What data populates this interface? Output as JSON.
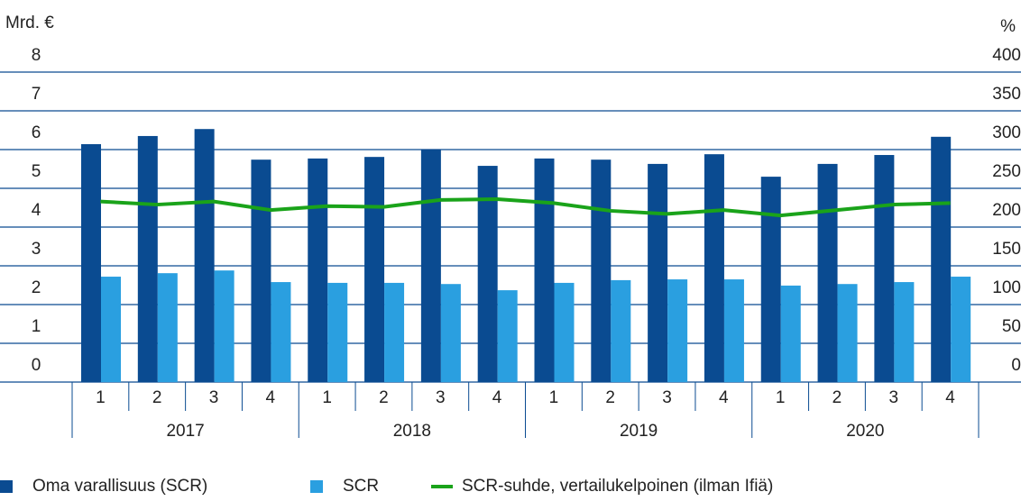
{
  "chart_data": {
    "type": "bar",
    "y_label": "Mrd. €",
    "y2_label": "%",
    "categories": [
      "1",
      "2",
      "3",
      "4",
      "1",
      "2",
      "3",
      "4",
      "1",
      "2",
      "3",
      "4",
      "1",
      "2",
      "3",
      "4"
    ],
    "groups": [
      "2017",
      "2018",
      "2019",
      "2020"
    ],
    "series": [
      {
        "name": "Oma varallisuus (SCR)",
        "color": "#0a4b91",
        "type": "bar",
        "values": [
          6.14,
          6.35,
          6.53,
          5.74,
          5.77,
          5.81,
          6.0,
          5.58,
          5.77,
          5.74,
          5.63,
          5.88,
          5.3,
          5.63,
          5.86,
          6.33
        ]
      },
      {
        "name": "SCR",
        "color": "#2a9fe0",
        "type": "bar",
        "values": [
          2.72,
          2.81,
          2.88,
          2.58,
          2.56,
          2.56,
          2.53,
          2.37,
          2.56,
          2.63,
          2.65,
          2.65,
          2.49,
          2.53,
          2.58,
          2.72
        ]
      },
      {
        "name": "SCR-suhde, vertailukelpoinen (ilman Ifiä)",
        "color": "#1aa31a",
        "type": "line",
        "axis": "y2",
        "values": [
          233,
          229,
          233,
          222,
          227,
          226,
          235,
          236,
          231,
          221,
          217,
          222,
          215,
          222,
          229,
          231
        ]
      }
    ],
    "ylim": [
      0,
      8
    ],
    "yticks": [
      0,
      1,
      2,
      3,
      4,
      5,
      6,
      7,
      8
    ],
    "y2lim": [
      0,
      400
    ],
    "y2ticks": [
      0,
      50,
      100,
      150,
      200,
      250,
      300,
      350,
      400
    ],
    "grid": true
  }
}
